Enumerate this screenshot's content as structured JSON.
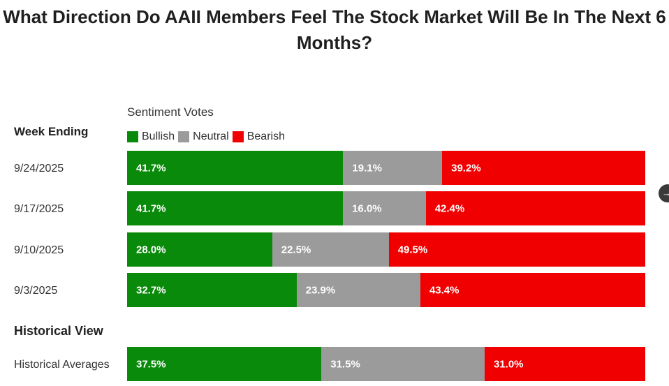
{
  "chart_data": {
    "type": "bar",
    "orientation": "horizontal-stacked-100",
    "title": "What Direction Do AAII Members Feel The Stock Market Will Be In The Next 6 Months?",
    "subtitle": "Sentiment Votes",
    "row_header": "Week Ending",
    "historical_header": "Historical View",
    "legend": [
      {
        "name": "Bullish",
        "color": "#0a8a0a"
      },
      {
        "name": "Neutral",
        "color": "#9b9b9b"
      },
      {
        "name": "Bearish",
        "color": "#f00000"
      }
    ],
    "categories": [
      "9/24/2025",
      "9/17/2025",
      "9/10/2025",
      "9/3/2025"
    ],
    "series": [
      {
        "name": "Bullish",
        "color": "#0a8a0a",
        "values": [
          41.7,
          41.7,
          28.0,
          32.7
        ]
      },
      {
        "name": "Neutral",
        "color": "#9b9b9b",
        "values": [
          19.1,
          16.0,
          22.5,
          23.9
        ]
      },
      {
        "name": "Bearish",
        "color": "#f00000",
        "values": [
          39.2,
          42.4,
          49.5,
          43.4
        ]
      }
    ],
    "historical": {
      "label": "Historical Averages",
      "values": [
        37.5,
        31.5,
        31.0
      ]
    },
    "unit": "%"
  },
  "ui": {
    "next_icon": "arrow-right-icon",
    "next_glyph": "→"
  }
}
